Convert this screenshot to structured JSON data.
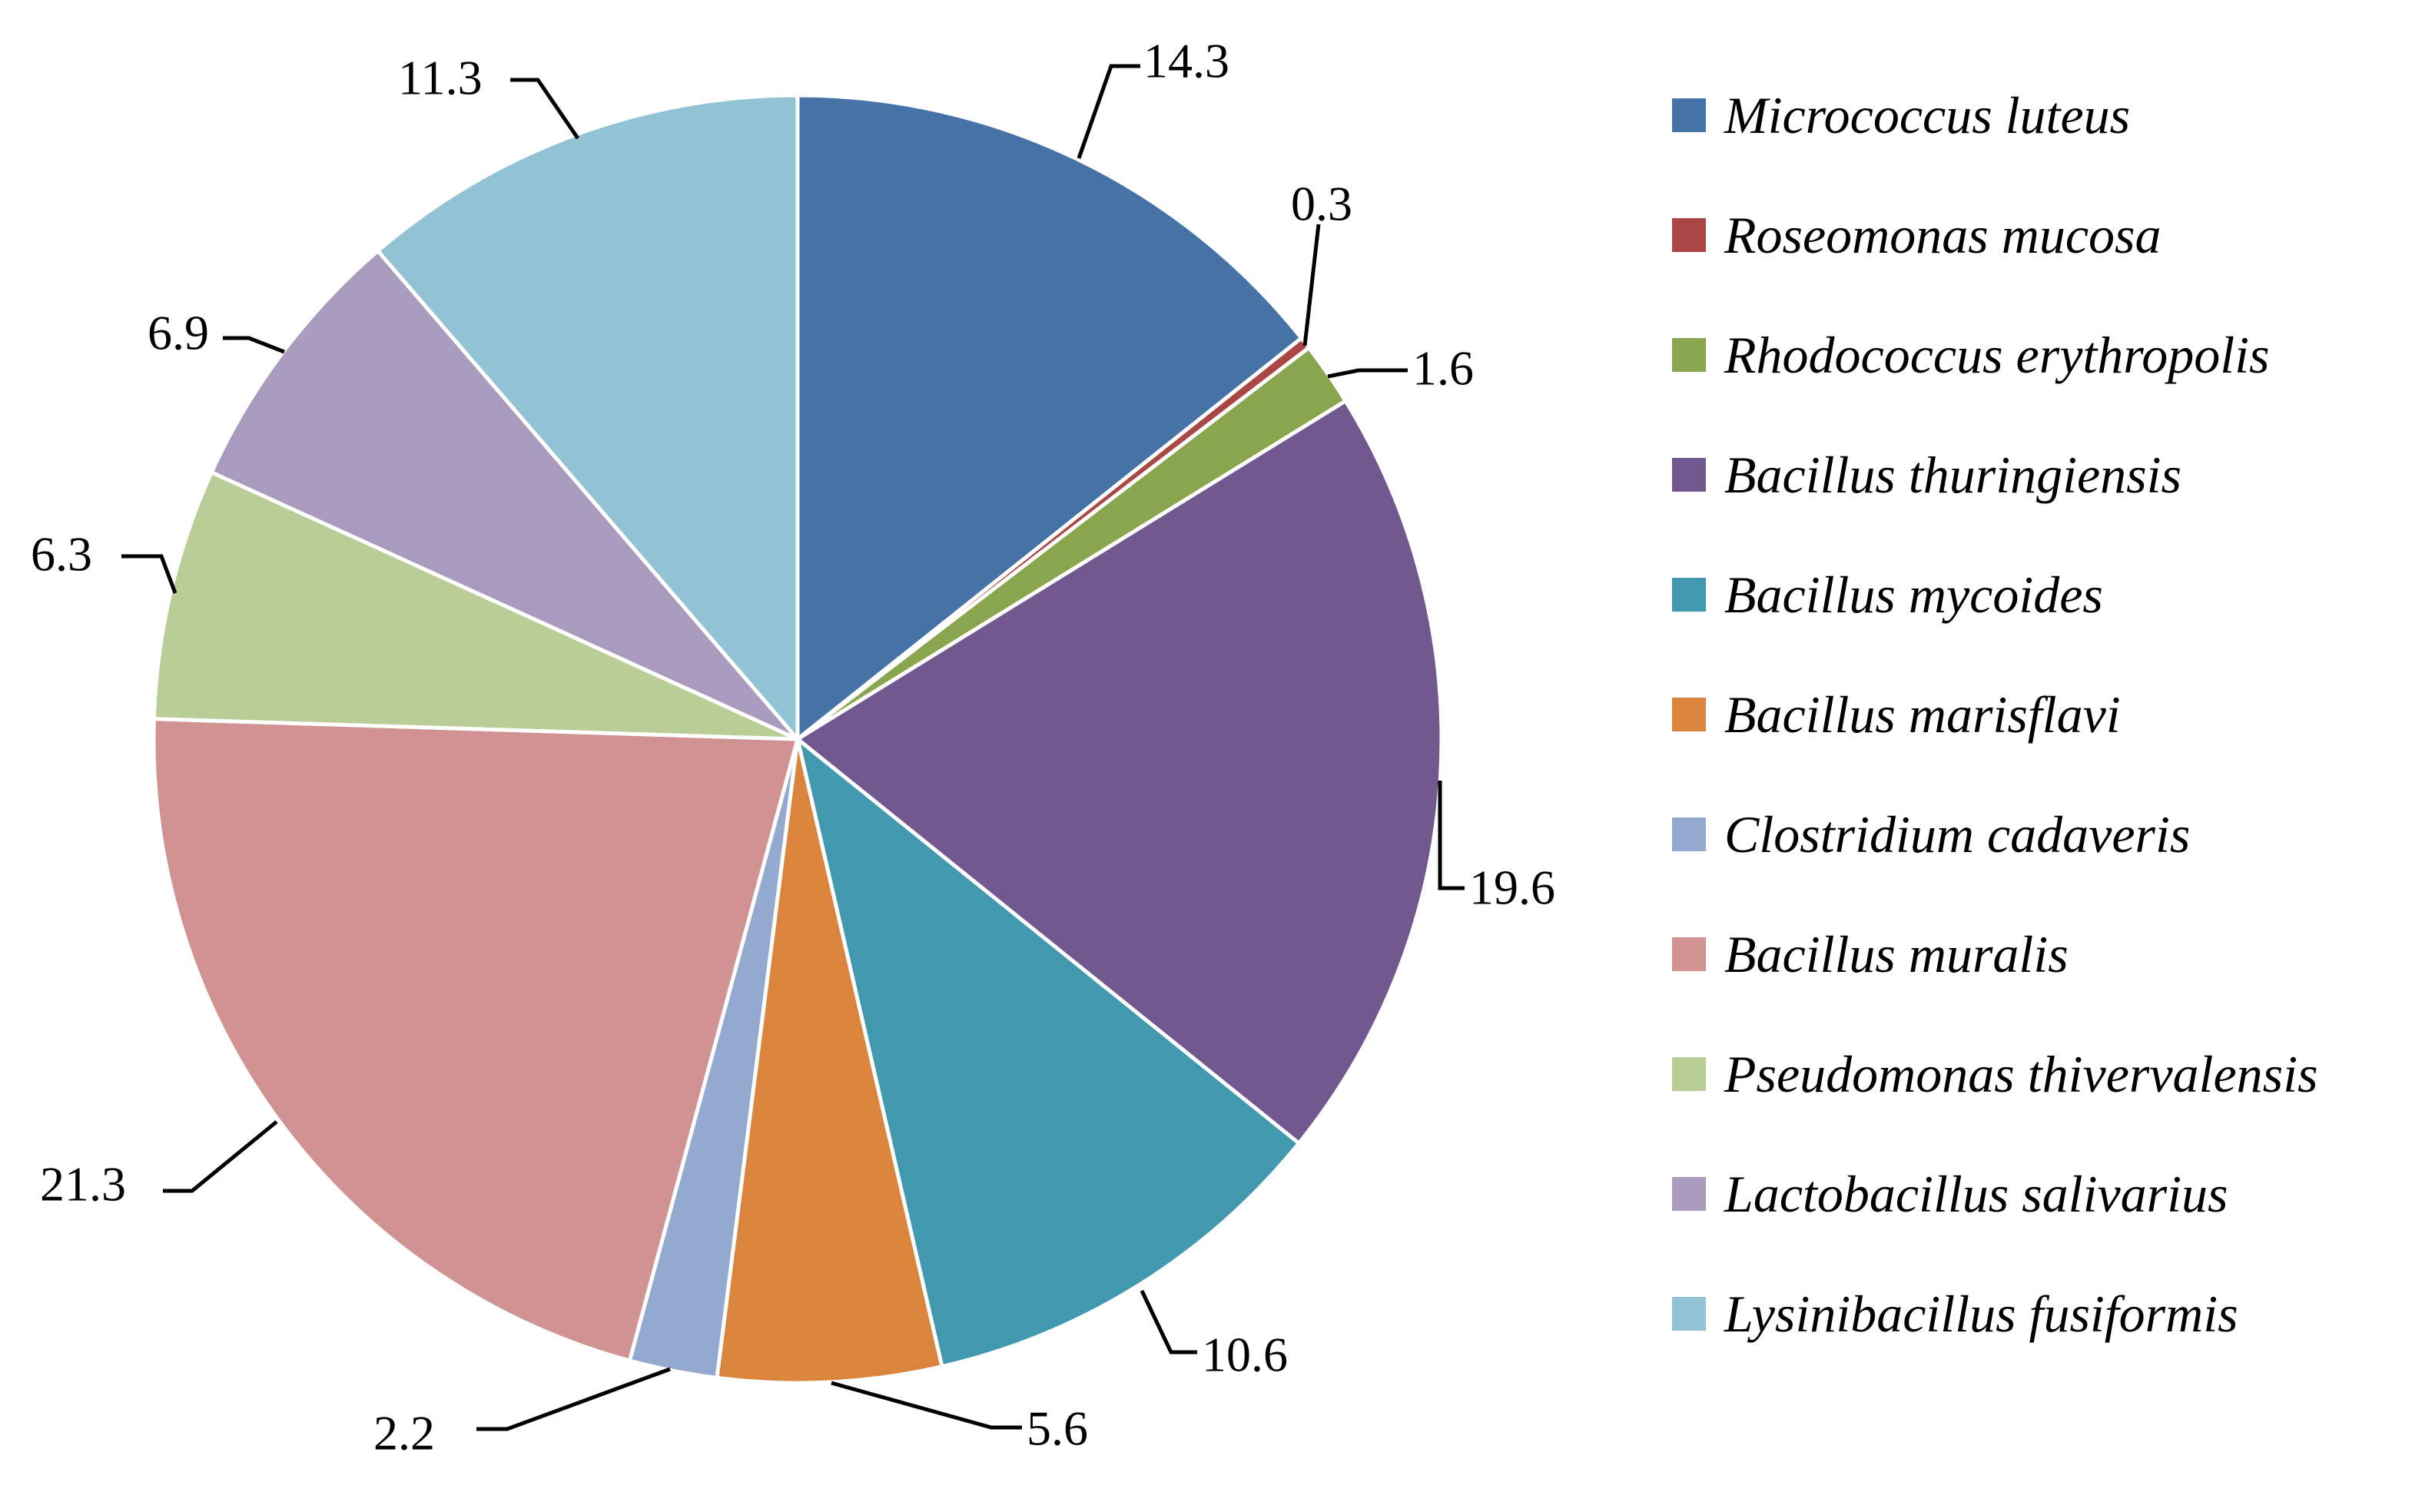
{
  "chart_data": {
    "type": "pie",
    "title": "",
    "legend_position": "right",
    "value_labels": "outside with leader lines",
    "start_angle": "12 o'clock, clockwise",
    "slices": [
      {
        "label": "Micrococcus luteus",
        "value": 14.3,
        "display": "14.3",
        "color": "#4572A7"
      },
      {
        "label": "Roseomonas mucosa",
        "value": 0.3,
        "display": "0.3",
        "color": "#AA4643"
      },
      {
        "label": "Rhodococcus erythropolis",
        "value": 1.6,
        "display": "1.6",
        "color": "#89A54E"
      },
      {
        "label": "Bacillus thuringiensis",
        "value": 19.6,
        "display": "19.6",
        "color": "#71588F"
      },
      {
        "label": "Bacillus mycoides",
        "value": 10.6,
        "display": "10.6",
        "color": "#4198AF"
      },
      {
        "label": "Bacillus marisflavi",
        "value": 5.6,
        "display": "5.6",
        "color": "#DB843D"
      },
      {
        "label": "Clostridium cadaveris",
        "value": 2.2,
        "display": "2.2",
        "color": "#93A9CF"
      },
      {
        "label": "Bacillus muralis",
        "value": 21.3,
        "display": "21.3",
        "color": "#D19392"
      },
      {
        "label": "Pseudomonas thivervalensis",
        "value": 6.3,
        "display": "6.3",
        "color": "#B9CD96"
      },
      {
        "label": "Lactobacillus salivarius",
        "value": 6.9,
        "display": "6.9",
        "color": "#A99BBD"
      },
      {
        "label": "Lysinibacillus fusiformis",
        "value": 11.3,
        "display": "11.3",
        "color": "#92C3D4"
      }
    ]
  }
}
